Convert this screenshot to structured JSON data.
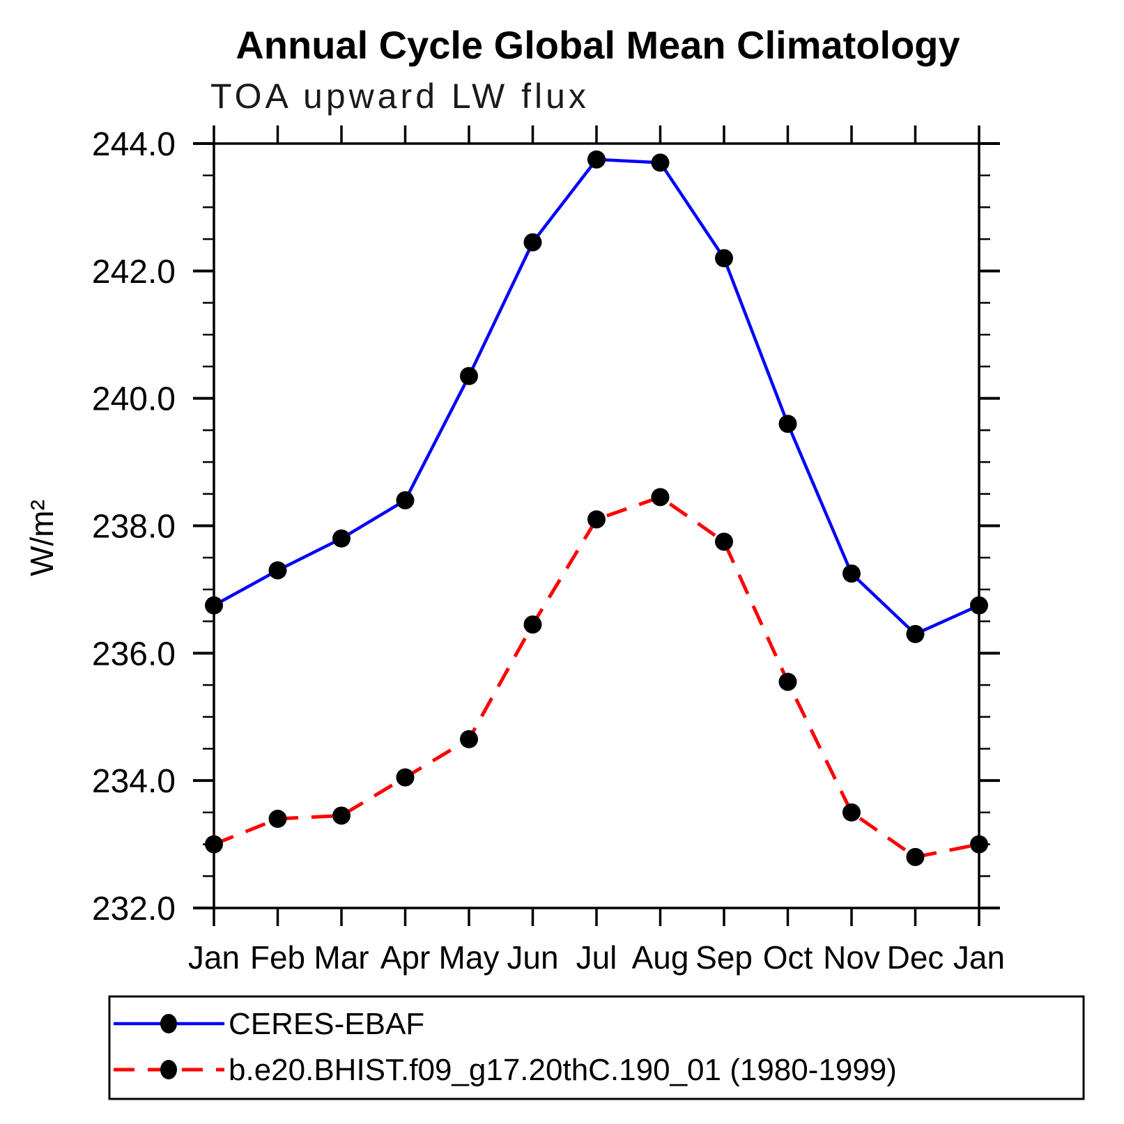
{
  "chart_data": {
    "type": "line",
    "title": "Annual Cycle Global Mean Climatology",
    "subtitle": "TOA upward LW flux",
    "xlabel": "",
    "ylabel": "W/m²",
    "categories": [
      "Jan",
      "Feb",
      "Mar",
      "Apr",
      "May",
      "Jun",
      "Jul",
      "Aug",
      "Sep",
      "Oct",
      "Nov",
      "Dec",
      "Jan"
    ],
    "ylim": [
      232.0,
      244.0
    ],
    "ytick_major_interval": 2.0,
    "ytick_minor_interval": 0.5,
    "ytick_labels": [
      "232.0",
      "234.0",
      "236.0",
      "238.0",
      "240.0",
      "242.0",
      "244.0"
    ],
    "grid": false,
    "legend_position": "bottom-left-box",
    "frame_color": "#000000",
    "marker_shape": "filled-circle",
    "series": [
      {
        "name": "CERES-EBAF",
        "color": "#0000ff",
        "style": "solid",
        "marker_color": "#000000",
        "values": [
          236.75,
          237.3,
          237.8,
          238.4,
          240.35,
          242.45,
          243.75,
          243.7,
          242.2,
          239.6,
          237.25,
          236.3,
          236.75
        ]
      },
      {
        "name": "b.e20.BHIST.f09_g17.20thC.190_01 (1980-1999)",
        "color": "#ff0000",
        "style": "dashed",
        "marker_color": "#000000",
        "values": [
          233.0,
          233.4,
          233.45,
          234.05,
          234.65,
          236.45,
          238.1,
          238.45,
          237.75,
          235.55,
          233.5,
          232.8,
          233.0
        ]
      }
    ]
  }
}
